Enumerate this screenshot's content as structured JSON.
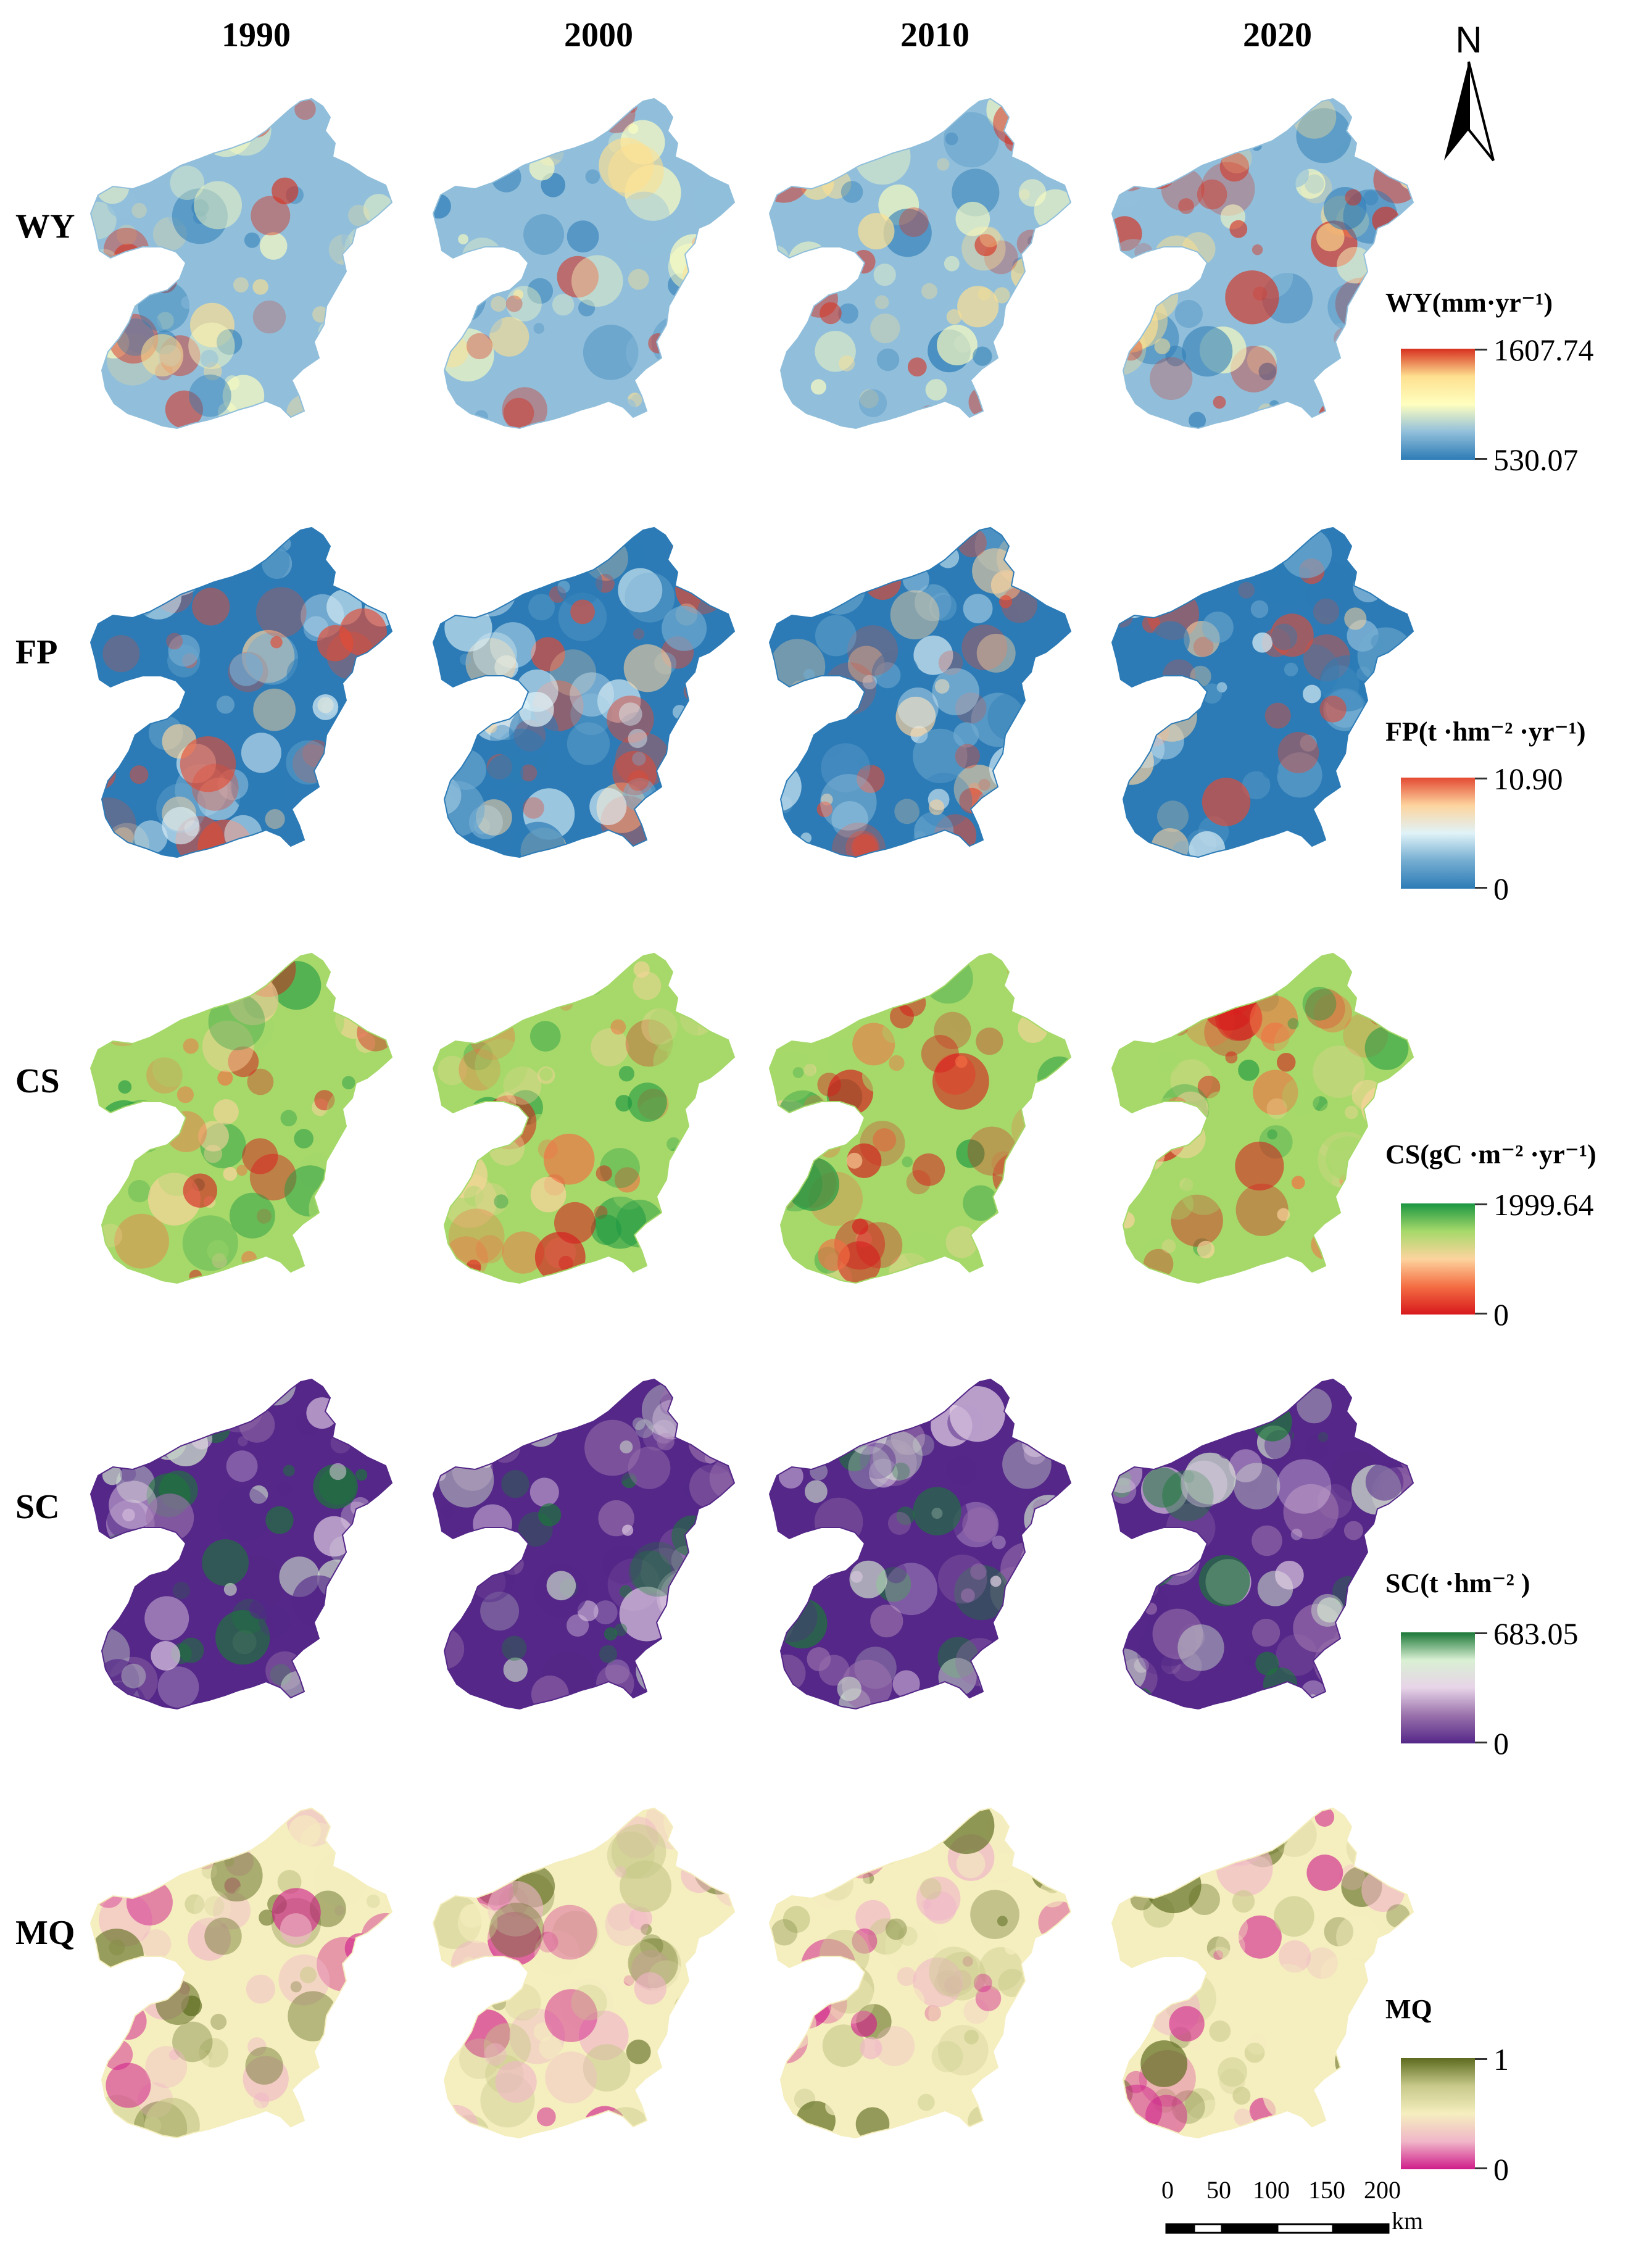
{
  "years": [
    "1990",
    "2000",
    "2010",
    "2020"
  ],
  "rows": [
    {
      "label": "WY",
      "legend_title": "WY(mm·yr⁻¹)",
      "max": "1607.74",
      "min": "530.07",
      "colors": [
        "#d7301f",
        "#fee090",
        "#ffffbf",
        "#91bfdb",
        "#2c7bb6"
      ]
    },
    {
      "label": "FP",
      "legend_title": "FP(t ·hm⁻² ·yr⁻¹)",
      "max": "10.90",
      "min": "0",
      "colors": [
        "#e34a33",
        "#fdd49e",
        "#e0f3f8",
        "#74add1",
        "#2c7bb6"
      ]
    },
    {
      "label": "CS",
      "legend_title": "CS(gC ·m⁻² ·yr⁻¹)",
      "max": "1999.64",
      "min": "0",
      "colors": [
        "#1a9641",
        "#a6d96a",
        "#fdd49e",
        "#f46d43",
        "#d7191c"
      ]
    },
    {
      "label": "SC",
      "legend_title": "SC(t ·hm⁻² )",
      "max": "683.05",
      "min": "0",
      "colors": [
        "#1b7837",
        "#d9f0d3",
        "#e7d4e8",
        "#9970ab",
        "#542788"
      ]
    },
    {
      "label": "MQ",
      "legend_title": "MQ",
      "max": "1",
      "min": "0",
      "colors": [
        "#5d6b1f",
        "#c7c98a",
        "#f5eebf",
        "#f0b6c8",
        "#d01c8b"
      ]
    }
  ],
  "north_label": "N",
  "scale": {
    "ticks": [
      "0",
      "50",
      "100",
      "150",
      "200"
    ],
    "unit": "km"
  }
}
